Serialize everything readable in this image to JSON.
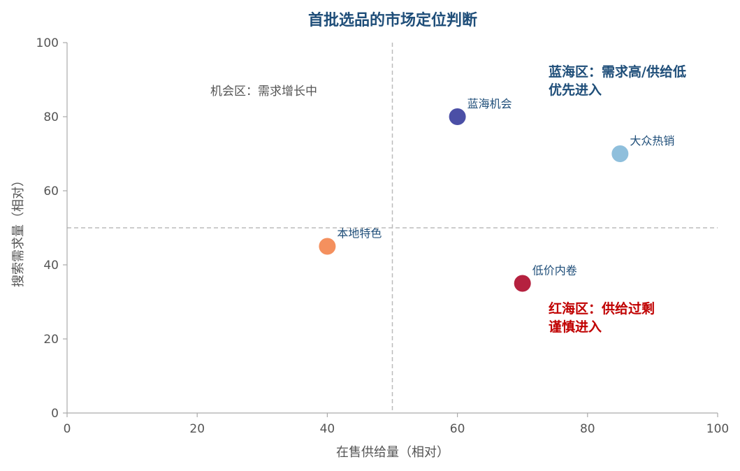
{
  "chart_data": {
    "type": "scatter",
    "title": "首批选品的市场定位判断",
    "xlabel": "在售供给量（相对）",
    "ylabel": "搜索需求量（相对）",
    "xlim": [
      0,
      100
    ],
    "ylim": [
      0,
      100
    ],
    "x_ticks": [
      0,
      20,
      40,
      60,
      80,
      100
    ],
    "y_ticks": [
      0,
      20,
      40,
      60,
      80,
      100
    ],
    "grid": false,
    "reference_lines": {
      "vertical_x": 50,
      "horizontal_y": 50
    },
    "points": [
      {
        "label": "蓝海机会",
        "x": 60,
        "y": 80,
        "color": "#4b4fa6"
      },
      {
        "label": "大众热销",
        "x": 85,
        "y": 70,
        "color": "#8fbfdc"
      },
      {
        "label": "本地特色",
        "x": 40,
        "y": 45,
        "color": "#f4905e"
      },
      {
        "label": "低价内卷",
        "x": 70,
        "y": 35,
        "color": "#b5213f"
      }
    ],
    "annotations": [
      {
        "text": "机会区：需求增长中",
        "color": "#555555",
        "bold": false
      },
      {
        "text": "蓝海区：需求高/供给低",
        "color": "#1f4e79",
        "bold": true
      },
      {
        "text": "优先进入",
        "color": "#1f4e79",
        "bold": true
      },
      {
        "text": "红海区：供给过剩",
        "color": "#c00000",
        "bold": true
      },
      {
        "text": "谨慎进入",
        "color": "#c00000",
        "bold": true
      }
    ],
    "label_color": "#1f4e79"
  }
}
